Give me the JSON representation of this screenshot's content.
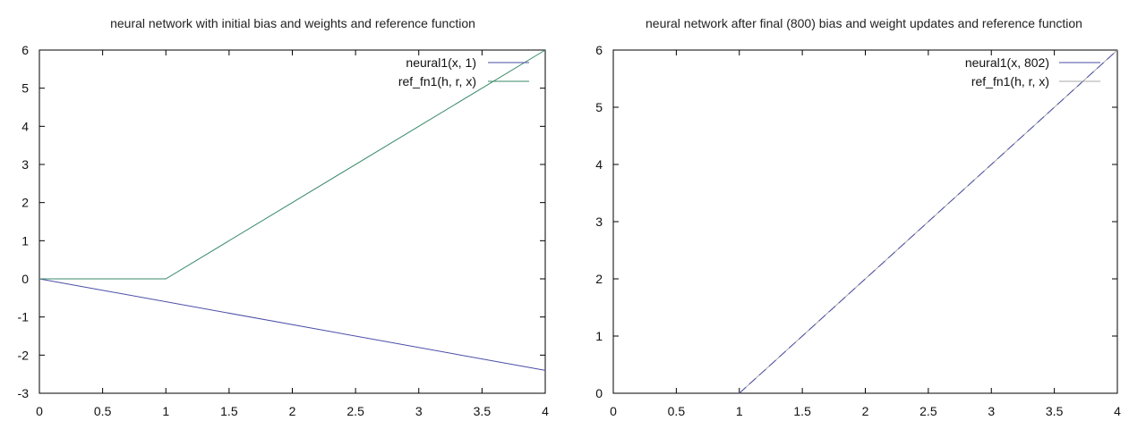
{
  "colors": {
    "neural_left": "#4b4da6",
    "ref_left": "#3a8a6a",
    "neural_right": "#4b4da6",
    "ref_right": "#aaaaaa",
    "axis": "#000000"
  },
  "chart_data": [
    {
      "type": "line",
      "title": "neural network with initial bias and weights and reference function",
      "xlim": [
        0,
        4
      ],
      "ylim": [
        -3,
        6
      ],
      "xticks": [
        "0",
        "0.5",
        "1",
        "1.5",
        "2",
        "2.5",
        "3",
        "3.5",
        "4"
      ],
      "yticks": [
        "-3",
        "-2",
        "-1",
        "0",
        "1",
        "2",
        "3",
        "4",
        "5",
        "6"
      ],
      "legend_position": "top-right",
      "grid": false,
      "series": [
        {
          "name": "neural1(x, 1)",
          "x": [
            0,
            4
          ],
          "y": [
            0,
            -2.4
          ]
        },
        {
          "name": "ref_fn1(h, r, x)",
          "x": [
            0,
            1,
            4
          ],
          "y": [
            0,
            0,
            6
          ]
        }
      ]
    },
    {
      "type": "line",
      "title": "neural network after final (800) bias and weight updates and reference function",
      "xlim": [
        0,
        4
      ],
      "ylim": [
        0,
        6
      ],
      "xticks": [
        "0",
        "0.5",
        "1",
        "1.5",
        "2",
        "2.5",
        "3",
        "3.5",
        "4"
      ],
      "yticks": [
        "0",
        "1",
        "2",
        "3",
        "4",
        "5",
        "6"
      ],
      "legend_position": "top-right",
      "grid": false,
      "series": [
        {
          "name": "neural1(x, 802)",
          "x": [
            1,
            4
          ],
          "y": [
            0,
            6
          ]
        },
        {
          "name": "ref_fn1(h, r, x)",
          "x": [
            1,
            4
          ],
          "y": [
            0,
            6
          ]
        }
      ]
    }
  ]
}
